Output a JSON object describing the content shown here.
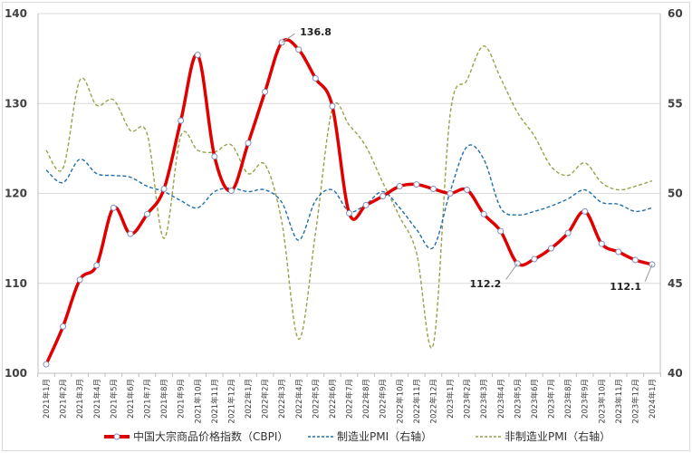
{
  "chart_data": {
    "type": "line",
    "x": [
      "2021年1月",
      "2021年2月",
      "2021年3月",
      "2021年4月",
      "2021年5月",
      "2021年6月",
      "2021年7月",
      "2021年8月",
      "2021年9月",
      "2021年10月",
      "2021年11月",
      "2021年12月",
      "2022年1月",
      "2022年2月",
      "2022年3月",
      "2022年4月",
      "2022年5月",
      "2022年6月",
      "2022年7月",
      "2022年8月",
      "2022年9月",
      "2022年10月",
      "2022年11月",
      "2022年12月",
      "2023年1月",
      "2023年2月",
      "2023年3月",
      "2023年4月",
      "2023年5月",
      "2023年6月",
      "2023年7月",
      "2023年8月",
      "2023年9月",
      "2023年10月",
      "2023年11月",
      "2023年12月",
      "2024年1月"
    ],
    "left_axis": {
      "range": [
        100,
        140
      ],
      "ticks": [
        "100",
        "110",
        "120",
        "130",
        "140"
      ]
    },
    "right_axis": {
      "range": [
        40,
        60
      ],
      "ticks": [
        "40",
        "45",
        "50",
        "55",
        "60"
      ]
    },
    "grid": true,
    "legend_placement": "bottom",
    "series": [
      {
        "name": "中国大宗商品价格指数（CBPI）",
        "axis": "left",
        "color": "#e00000",
        "style": "solid-markers",
        "values": [
          101.0,
          105.2,
          110.4,
          112.0,
          118.4,
          115.5,
          117.7,
          120.5,
          128.1,
          135.4,
          124.1,
          120.3,
          125.6,
          131.3,
          136.8,
          136.0,
          132.8,
          129.7,
          117.8,
          118.7,
          119.7,
          120.8,
          121.0,
          120.5,
          120.0,
          120.4,
          117.7,
          115.8,
          112.2,
          112.7,
          113.9,
          115.6,
          118.0,
          114.4,
          113.5,
          112.6,
          112.1
        ]
      },
      {
        "name": "制造业PMI（右轴）",
        "axis": "right",
        "color": "#1f6fa8",
        "style": "dashed",
        "values": [
          51.3,
          50.6,
          51.9,
          51.1,
          51.0,
          50.9,
          50.4,
          50.1,
          49.6,
          49.2,
          50.1,
          50.3,
          50.1,
          50.2,
          49.5,
          47.4,
          49.6,
          50.2,
          49.0,
          49.4,
          50.1,
          49.2,
          48.0,
          47.0,
          50.1,
          52.6,
          51.9,
          49.2,
          48.8,
          49.0,
          49.3,
          49.7,
          50.2,
          49.5,
          49.4,
          49.0,
          49.2
        ]
      },
      {
        "name": "非制造业PMI（右轴）",
        "axis": "right",
        "color": "#9aa048",
        "style": "dashed",
        "values": [
          52.4,
          51.4,
          56.3,
          54.9,
          55.2,
          53.5,
          53.3,
          47.5,
          53.2,
          52.4,
          52.3,
          52.7,
          51.1,
          51.6,
          48.4,
          41.9,
          47.8,
          54.7,
          53.8,
          52.6,
          50.6,
          48.7,
          46.7,
          41.6,
          54.4,
          56.3,
          58.2,
          56.4,
          54.5,
          53.2,
          51.5,
          51.0,
          51.7,
          50.6,
          50.2,
          50.4,
          50.7
        ]
      }
    ],
    "annotations": [
      {
        "text": "136.8",
        "index": 14
      },
      {
        "text": "112.2",
        "index": 28
      },
      {
        "text": "112.1",
        "index": 36
      }
    ]
  }
}
